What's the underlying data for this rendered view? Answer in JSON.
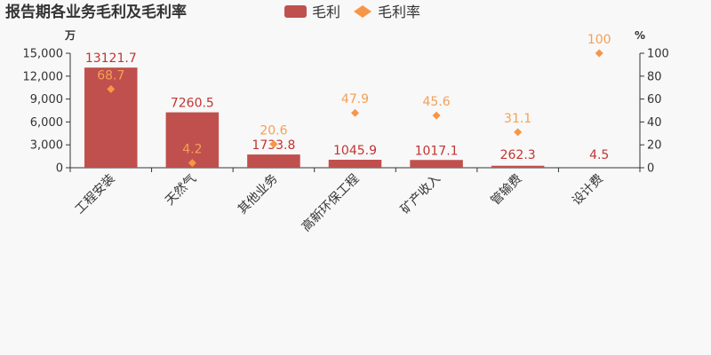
{
  "chart_data": {
    "type": "bar",
    "title": "报告期各业务毛利及毛利率",
    "categories": [
      "工程安装",
      "天然气",
      "其他业务",
      "高新环保工程",
      "矿产收入",
      "管输费",
      "设计费"
    ],
    "series": [
      {
        "name": "毛利",
        "type": "bar",
        "axis": "left",
        "color": "#c0504d",
        "values": [
          13121.7,
          7260.5,
          1733.8,
          1045.9,
          1017.1,
          262.3,
          4.5
        ],
        "labels": [
          "13121.7",
          "7260.5",
          "1733.8",
          "1045.9",
          "1017.1",
          "262.3",
          "4.5"
        ]
      },
      {
        "name": "毛利率",
        "type": "scatter",
        "axis": "right",
        "color": "#f79646",
        "values": [
          68.7,
          4.2,
          20.6,
          47.9,
          45.6,
          31.1,
          100
        ],
        "labels": [
          "68.7",
          "4.2",
          "20.6",
          "47.9",
          "45.6",
          "31.1",
          "100"
        ]
      }
    ],
    "y_left": {
      "unit": "万",
      "ylim": [
        0,
        15000
      ],
      "ticks": [
        "0",
        "3,000",
        "6,000",
        "9,000",
        "12,000",
        "15,000"
      ]
    },
    "y_right": {
      "unit": "%",
      "ylim": [
        0,
        100
      ],
      "ticks": [
        "0",
        "20",
        "40",
        "60",
        "80",
        "100"
      ]
    },
    "legend_position": "top-center",
    "grid": false
  }
}
